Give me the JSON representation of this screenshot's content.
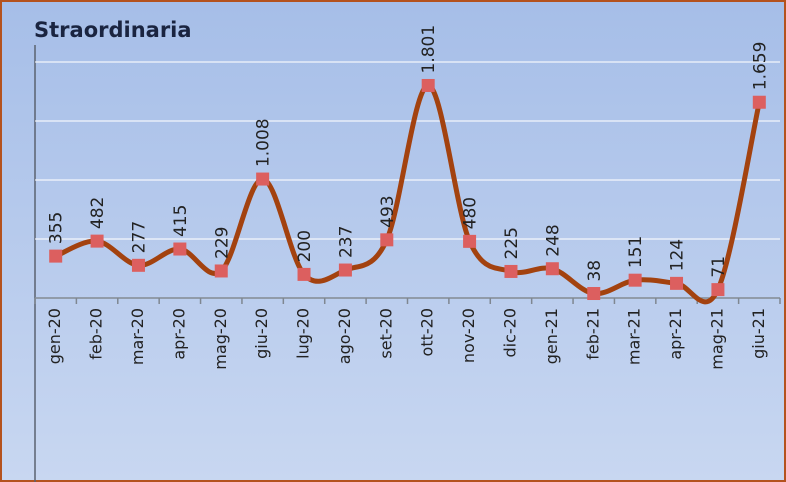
{
  "chart_data": {
    "type": "line",
    "title": "Straordinaria",
    "categories": [
      "gen-20",
      "feb-20",
      "mar-20",
      "apr-20",
      "mag-20",
      "giu-20",
      "lug-20",
      "ago-20",
      "set-20",
      "ott-20",
      "nov-20",
      "dic-20",
      "gen-21",
      "feb-21",
      "mar-21",
      "apr-21",
      "mag-21",
      "giu-21"
    ],
    "values": [
      355,
      482,
      277,
      415,
      229,
      1008,
      200,
      237,
      493,
      1801,
      480,
      225,
      248,
      38,
      151,
      124,
      71,
      1659
    ],
    "value_labels": [
      "355",
      "482",
      "277",
      "415",
      "229",
      "1.008",
      "200",
      "237",
      "493",
      "1.801",
      "480",
      "225",
      "248",
      "38",
      "151",
      "124",
      "71",
      "1.659"
    ],
    "color": "#a3420f",
    "marker_color": "#dc5f5f",
    "ylim": [
      0,
      2000
    ],
    "yticks": [
      0,
      500,
      1000,
      1500,
      2000
    ],
    "grid": true
  }
}
